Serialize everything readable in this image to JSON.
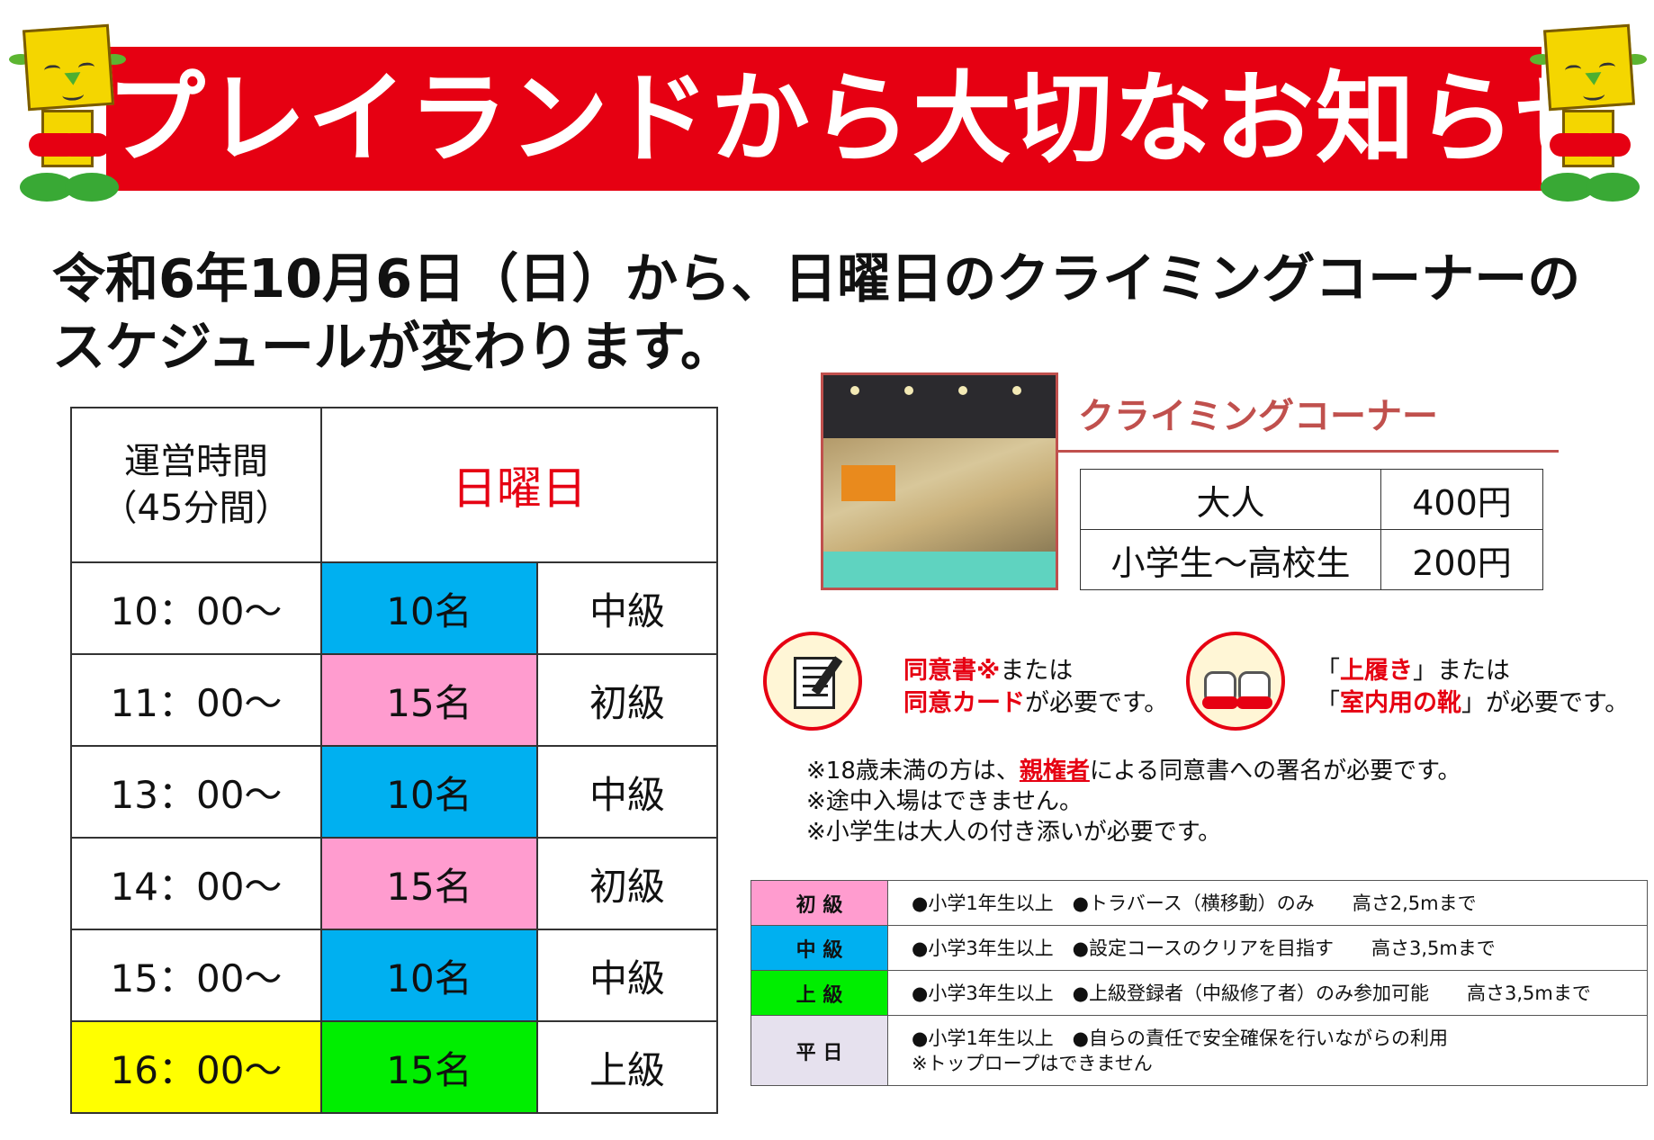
{
  "banner": {
    "title": "プレイランドから大切なお知らせ"
  },
  "headline": {
    "line1": "令和6年10月6日（日）から、日曜日のクライミングコーナーの",
    "line2": "スケジュールが変わります。"
  },
  "schedule": {
    "header_time_line1": "運営時間",
    "header_time_line2": "（45分間）",
    "header_day": "日曜日",
    "rows": [
      {
        "time": "10：00～",
        "capacity": "10名",
        "level": "中級"
      },
      {
        "time": "11：00～",
        "capacity": "15名",
        "level": "初級"
      },
      {
        "time": "13：00～",
        "capacity": "10名",
        "level": "中級"
      },
      {
        "time": "14：00～",
        "capacity": "15名",
        "level": "初級"
      },
      {
        "time": "15：00～",
        "capacity": "10名",
        "level": "中級"
      },
      {
        "time": "16：00～",
        "capacity": "15名",
        "level": "上級"
      }
    ]
  },
  "corner": {
    "title": "クライミングコーナー",
    "prices": [
      {
        "label": "大人",
        "price": "400円"
      },
      {
        "label": "小学生～高校生",
        "price": "200円"
      }
    ]
  },
  "requirements": {
    "consent_part1": "同意書※",
    "consent_part2": "または",
    "consent_part3": "同意カード",
    "consent_part4": "が必要です。",
    "shoes_part1": "「",
    "shoes_part2": "上履き",
    "shoes_part3": "」または",
    "shoes_part4": "「",
    "shoes_part5": "室内用の靴",
    "shoes_part6": "」が必要です。"
  },
  "notes": {
    "note1_a": "※18歳未満の方は、",
    "note1_b": "親権者",
    "note1_c": "による同意書への署名が必要です。",
    "note2": "※途中入場はできません。",
    "note3": "※小学生は大人の付き添いが必要です。"
  },
  "levels": [
    {
      "name": "初 級",
      "desc": "●小学1年生以上　●トラバース（横移動）のみ　　高さ2,5mまで",
      "desc2": ""
    },
    {
      "name": "中 級",
      "desc": "●小学3年生以上　●設定コースのクリアを目指す　　高さ3,5mまで",
      "desc2": ""
    },
    {
      "name": "上 級",
      "desc": "●小学3年生以上　●上級登録者（中級修了者）のみ参加可能　　高さ3,5mまで",
      "desc2": ""
    },
    {
      "name": "平 日",
      "desc": "●小学1年生以上　●自らの責任で安全確保を行いながらの利用",
      "desc2": "※トップロープはできません"
    }
  ],
  "colors": {
    "banner_red": "#e60012",
    "blue": "#00b0f0",
    "pink": "#ff9ccf",
    "green": "#00ee00",
    "yellow": "#ffff00",
    "lavender": "#e6e1ee",
    "corner_accent": "#c0504d"
  },
  "icons": [
    "mascot-icon",
    "document-pen-icon",
    "indoor-shoes-icon"
  ]
}
